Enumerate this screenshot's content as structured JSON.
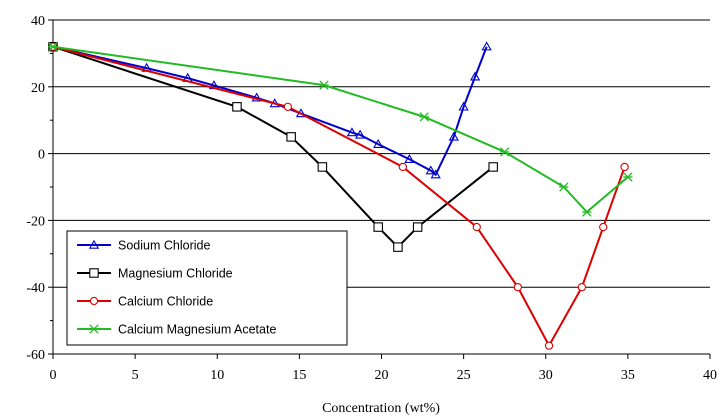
{
  "chart_data": {
    "type": "line",
    "xlabel": "Concentration (wt%)",
    "ylabel": "",
    "xlim": [
      0,
      40
    ],
    "ylim": [
      -60,
      40
    ],
    "x_ticks": [
      "0",
      "5",
      "10",
      "15",
      "20",
      "25",
      "30",
      "35",
      "40"
    ],
    "y_ticks": [
      "40",
      "20",
      "0",
      "-20",
      "-40",
      "-60"
    ],
    "grid": "horizontal major lines",
    "legend_position": "lower-left",
    "series": [
      {
        "name": "Sodium Chloride",
        "color": "#0000cc",
        "marker": "triangle",
        "points": [
          [
            0,
            32
          ],
          [
            5.7,
            25.6
          ],
          [
            8.2,
            22.6
          ],
          [
            9.8,
            20.4
          ],
          [
            12.4,
            16.7
          ],
          [
            13.5,
            15.0
          ],
          [
            15.1,
            12.0
          ],
          [
            18.2,
            6.3
          ],
          [
            18.7,
            5.6
          ],
          [
            19.8,
            2.8
          ],
          [
            21.7,
            -1.7
          ],
          [
            23.0,
            -5.1
          ],
          [
            23.3,
            -6.3
          ],
          [
            24.4,
            5.0
          ],
          [
            25.0,
            14.0
          ],
          [
            25.7,
            23.0
          ],
          [
            26.4,
            32.0
          ]
        ]
      },
      {
        "name": "Magnesium Chloride",
        "color": "#000000",
        "marker": "square",
        "points": [
          [
            0,
            32
          ],
          [
            11.2,
            14.0
          ],
          [
            14.5,
            5.0
          ],
          [
            16.4,
            -4.0
          ],
          [
            19.8,
            -22.0
          ],
          [
            21.0,
            -28.0
          ],
          [
            22.2,
            -22.0
          ],
          [
            26.8,
            -4.0
          ]
        ]
      },
      {
        "name": "Calcium Chloride",
        "color": "#dd0000",
        "marker": "circle",
        "points": [
          [
            0,
            32
          ],
          [
            14.3,
            14.0
          ],
          [
            21.3,
            -4.0
          ],
          [
            25.8,
            -22.0
          ],
          [
            28.3,
            -40.0
          ],
          [
            30.2,
            -57.5
          ],
          [
            32.2,
            -40.0
          ],
          [
            33.5,
            -22.0
          ],
          [
            34.8,
            -4.0
          ]
        ]
      },
      {
        "name": "Calcium Magnesium Acetate",
        "color": "#22bb22",
        "marker": "x",
        "points": [
          [
            0,
            32
          ],
          [
            16.5,
            20.5
          ],
          [
            22.6,
            11.0
          ],
          [
            27.5,
            0.5
          ],
          [
            31.1,
            -10.0
          ],
          [
            32.5,
            -17.5
          ],
          [
            35.0,
            -7.0
          ]
        ]
      }
    ]
  }
}
